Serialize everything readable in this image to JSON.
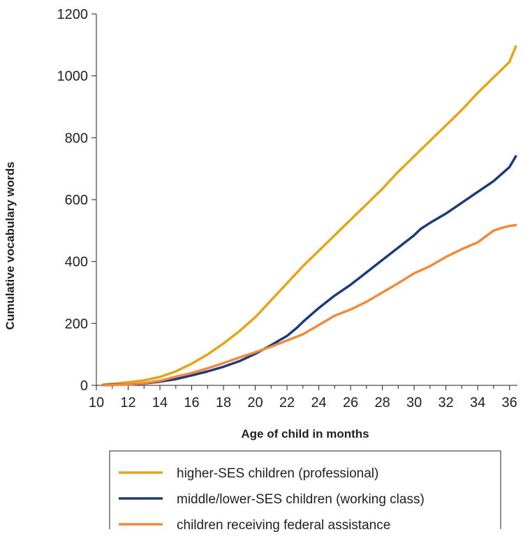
{
  "chart_data": {
    "type": "line",
    "title": "",
    "xlabel": "Age of child in months",
    "ylabel": "Cumulative vocabulary words",
    "xlim": [
      10,
      36.5
    ],
    "ylim": [
      0,
      1200
    ],
    "xticks": [
      "10",
      "12",
      "14",
      "16",
      "18",
      "20",
      "22",
      "24",
      "26",
      "28",
      "30",
      "32",
      "34",
      "36"
    ],
    "yticks": [
      "0",
      "200",
      "400",
      "600",
      "800",
      "1000",
      "1200"
    ],
    "grid": false,
    "legend_position": "bottom",
    "series": [
      {
        "name": "higher-SES children (professional)",
        "color": "#e8a317",
        "x": [
          10.4,
          11,
          12,
          13,
          14,
          15,
          16,
          17,
          18,
          19,
          20,
          21,
          22,
          23,
          24,
          25,
          26,
          27,
          28,
          29,
          30,
          31,
          32,
          33,
          34,
          35,
          36,
          36.4
        ],
        "y": [
          2,
          5,
          10,
          16,
          27,
          45,
          70,
          100,
          135,
          175,
          220,
          275,
          330,
          385,
          435,
          485,
          535,
          585,
          635,
          690,
          740,
          790,
          840,
          890,
          945,
          995,
          1045,
          1095
        ]
      },
      {
        "name": "middle/lower-SES children (working class)",
        "color": "#1f3a7a",
        "x": [
          10.4,
          11,
          12,
          13,
          14,
          15,
          16,
          17,
          18,
          19,
          20,
          21,
          22,
          22.6,
          23,
          24,
          25,
          26,
          27,
          28,
          29,
          30,
          30.4,
          31,
          32,
          33,
          34,
          35,
          36,
          36.4
        ],
        "y": [
          1,
          2,
          3,
          6,
          12,
          20,
          32,
          45,
          60,
          78,
          102,
          130,
          160,
          185,
          205,
          250,
          290,
          325,
          365,
          405,
          445,
          485,
          505,
          525,
          555,
          590,
          625,
          660,
          705,
          740
        ]
      },
      {
        "name": "children receiving federal assistance",
        "color": "#f08a3c",
        "x": [
          10.4,
          11,
          12,
          13,
          14,
          15,
          16,
          17,
          18,
          19,
          20,
          21,
          22,
          23,
          24,
          25,
          26,
          27,
          28,
          29,
          30,
          31,
          32,
          33,
          34,
          35,
          35.6,
          36,
          36.4
        ],
        "y": [
          0,
          1,
          3,
          7,
          15,
          28,
          40,
          55,
          72,
          90,
          107,
          125,
          145,
          165,
          195,
          225,
          245,
          270,
          300,
          330,
          362,
          385,
          415,
          440,
          462,
          500,
          510,
          515,
          518
        ]
      }
    ]
  }
}
